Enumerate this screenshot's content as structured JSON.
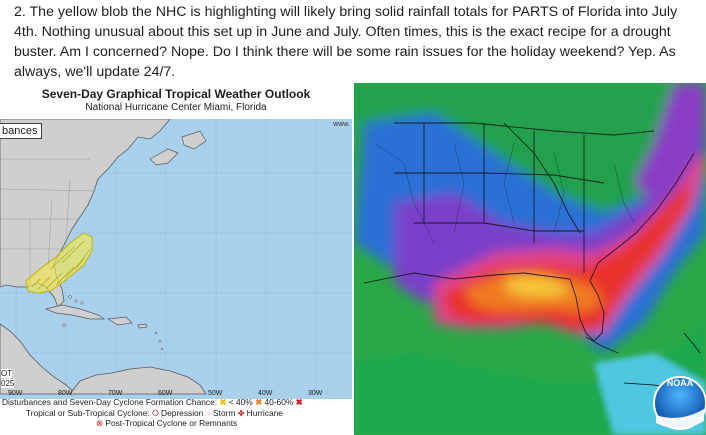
{
  "post": {
    "text": "2. The yellow blob the NHC is highlighting will likely bring solid rainfall totals for PARTS of Florida into July 4th. Nothing unusual about this set up in June and July. Often times, this is the exact recipe for a drought buster. Am I concerned? Nope. Do I think there will be some rain issues for the holiday weekend? Yep. As always, we'll update 24/7."
  },
  "outlook": {
    "title": "Seven-Day Graphical Tropical Weather Outlook",
    "subtitle": "National Hurricane Center  Miami, Florida",
    "tab_label": "bances",
    "url_fragment": "www.",
    "time_label": "OT",
    "year_label": "025",
    "lon_labels": [
      "90W",
      "80W",
      "70W",
      "60W",
      "50W",
      "40W",
      "30W"
    ],
    "legend": {
      "line1_prefix": "Disturbances and Seven-Day Cyclone Formation Chance:",
      "low": "< 40%",
      "mid": "40-60%",
      "line2_prefix": "Tropical or Sub-Tropical Cyclone:",
      "depression": "Depression",
      "storm": "Storm",
      "hurricane": "Hurricane",
      "line3": "Post-Tropical Cyclone or Remnants"
    }
  },
  "rainfall": {
    "logo_text": "NOAA"
  },
  "colors": {
    "ocean": "#a9d1ee",
    "land": "#cfcfcf",
    "blob_yellow": "#f2e64d",
    "legend_red": "#d7191c",
    "legend_orange": "#e8881b",
    "legend_yellow": "#e0c300"
  }
}
